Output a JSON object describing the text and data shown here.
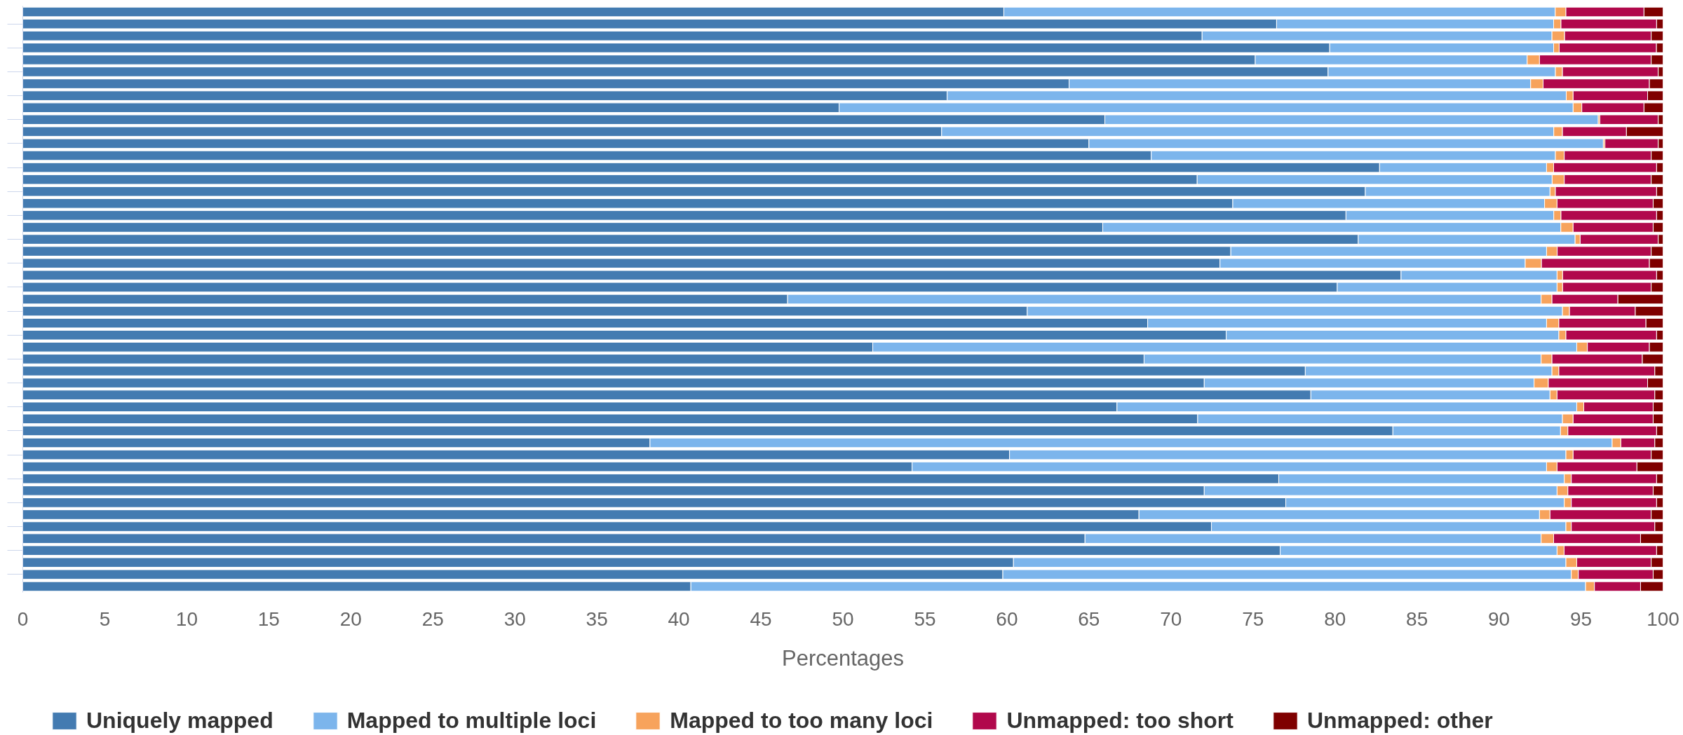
{
  "chart_data": {
    "type": "bar",
    "orientation": "horizontal",
    "stacked": true,
    "categories": [
      null,
      null,
      null,
      null,
      null,
      null,
      null,
      null,
      null,
      null,
      null,
      null,
      null,
      null,
      null,
      null,
      null,
      null,
      null,
      null,
      null,
      null,
      null,
      null,
      null,
      null,
      null,
      null,
      null,
      null,
      null,
      null,
      null,
      null,
      null,
      null,
      null,
      null,
      null,
      null,
      null,
      null,
      null,
      null,
      null,
      null,
      null,
      null,
      null
    ],
    "series": [
      {
        "name": "Uniquely mapped",
        "color": "#437bb1",
        "values": [
          59.81,
          76.44,
          71.9,
          79.68,
          75.14,
          79.58,
          63.79,
          56.36,
          49.77,
          65.97,
          56.02,
          65.0,
          68.8,
          82.72,
          71.6,
          81.85,
          73.77,
          80.67,
          65.84,
          81.42,
          73.65,
          72.99,
          84.03,
          80.14,
          46.63,
          61.24,
          68.58,
          73.37,
          51.82,
          68.36,
          78.19,
          72.03,
          78.53,
          66.71,
          71.63,
          83.53,
          38.24,
          60.16,
          54.22,
          76.57,
          72.03,
          77.0,
          68.05,
          72.47,
          64.76,
          76.66,
          60.4,
          59.75,
          40.73
        ]
      },
      {
        "name": "Mapped to multiple loci",
        "color": "#7cb5ec",
        "values": [
          33.62,
          16.89,
          21.33,
          13.65,
          16.58,
          13.86,
          28.14,
          37.74,
          44.75,
          30.08,
          37.32,
          31.36,
          24.64,
          10.18,
          21.64,
          11.26,
          19.01,
          12.67,
          27.93,
          13.22,
          19.25,
          18.61,
          9.51,
          13.4,
          45.94,
          32.63,
          24.32,
          20.28,
          42.92,
          24.21,
          15.04,
          20.11,
          14.58,
          28.03,
          22.24,
          10.22,
          58.66,
          33.92,
          38.68,
          17.41,
          21.51,
          16.98,
          24.42,
          21.61,
          27.81,
          16.88,
          33.68,
          34.66,
          54.55
        ]
      },
      {
        "name": "Mapped to too many loci",
        "color": "#f7a35c",
        "values": [
          0.65,
          0.45,
          0.77,
          0.34,
          0.75,
          0.43,
          0.76,
          0.42,
          0.53,
          0.1,
          0.53,
          0.1,
          0.54,
          0.43,
          0.74,
          0.33,
          0.76,
          0.44,
          0.75,
          0.31,
          0.65,
          0.99,
          0.34,
          0.34,
          0.66,
          0.43,
          0.75,
          0.43,
          0.65,
          0.66,
          0.42,
          0.87,
          0.43,
          0.43,
          0.65,
          0.45,
          0.53,
          0.44,
          0.64,
          0.43,
          0.66,
          0.43,
          0.64,
          0.33,
          0.76,
          0.43,
          0.66,
          0.43,
          0.54
        ]
      },
      {
        "name": "Unmapped: too short",
        "color": "#b1084c",
        "values": [
          4.76,
          5.83,
          5.28,
          5.93,
          6.81,
          5.84,
          6.48,
          4.54,
          3.79,
          3.56,
          3.9,
          3.25,
          5.3,
          6.28,
          5.3,
          6.17,
          5.86,
          5.83,
          4.88,
          4.76,
          5.73,
          6.58,
          5.73,
          5.4,
          4.02,
          4.01,
          5.31,
          5.53,
          3.78,
          5.51,
          5.85,
          6.05,
          5.96,
          4.23,
          4.88,
          5.41,
          2.07,
          4.76,
          4.87,
          5.2,
          5.2,
          5.2,
          6.17,
          5.09,
          5.3,
          5.64,
          4.54,
          4.56,
          2.81
        ]
      },
      {
        "name": "Unmapped: other",
        "color": "#7f0000",
        "values": [
          1.16,
          0.39,
          0.72,
          0.4,
          0.72,
          0.29,
          0.83,
          0.94,
          1.16,
          0.29,
          2.23,
          0.29,
          0.72,
          0.39,
          0.72,
          0.39,
          0.6,
          0.39,
          0.6,
          0.29,
          0.72,
          0.83,
          0.39,
          0.72,
          2.75,
          1.69,
          1.04,
          0.39,
          0.83,
          1.26,
          0.5,
          0.94,
          0.5,
          0.6,
          0.6,
          0.39,
          0.5,
          0.72,
          1.59,
          0.39,
          0.6,
          0.39,
          0.72,
          0.5,
          1.37,
          0.39,
          0.72,
          0.6,
          1.37
        ]
      }
    ],
    "xlim": [
      0,
      100
    ],
    "xticks": [
      0,
      5,
      10,
      15,
      20,
      25,
      30,
      35,
      40,
      45,
      50,
      55,
      60,
      65,
      70,
      75,
      80,
      85,
      90,
      95,
      100
    ],
    "xlabel": "Percentages",
    "legend": "bottom",
    "tick_labels": "x"
  }
}
